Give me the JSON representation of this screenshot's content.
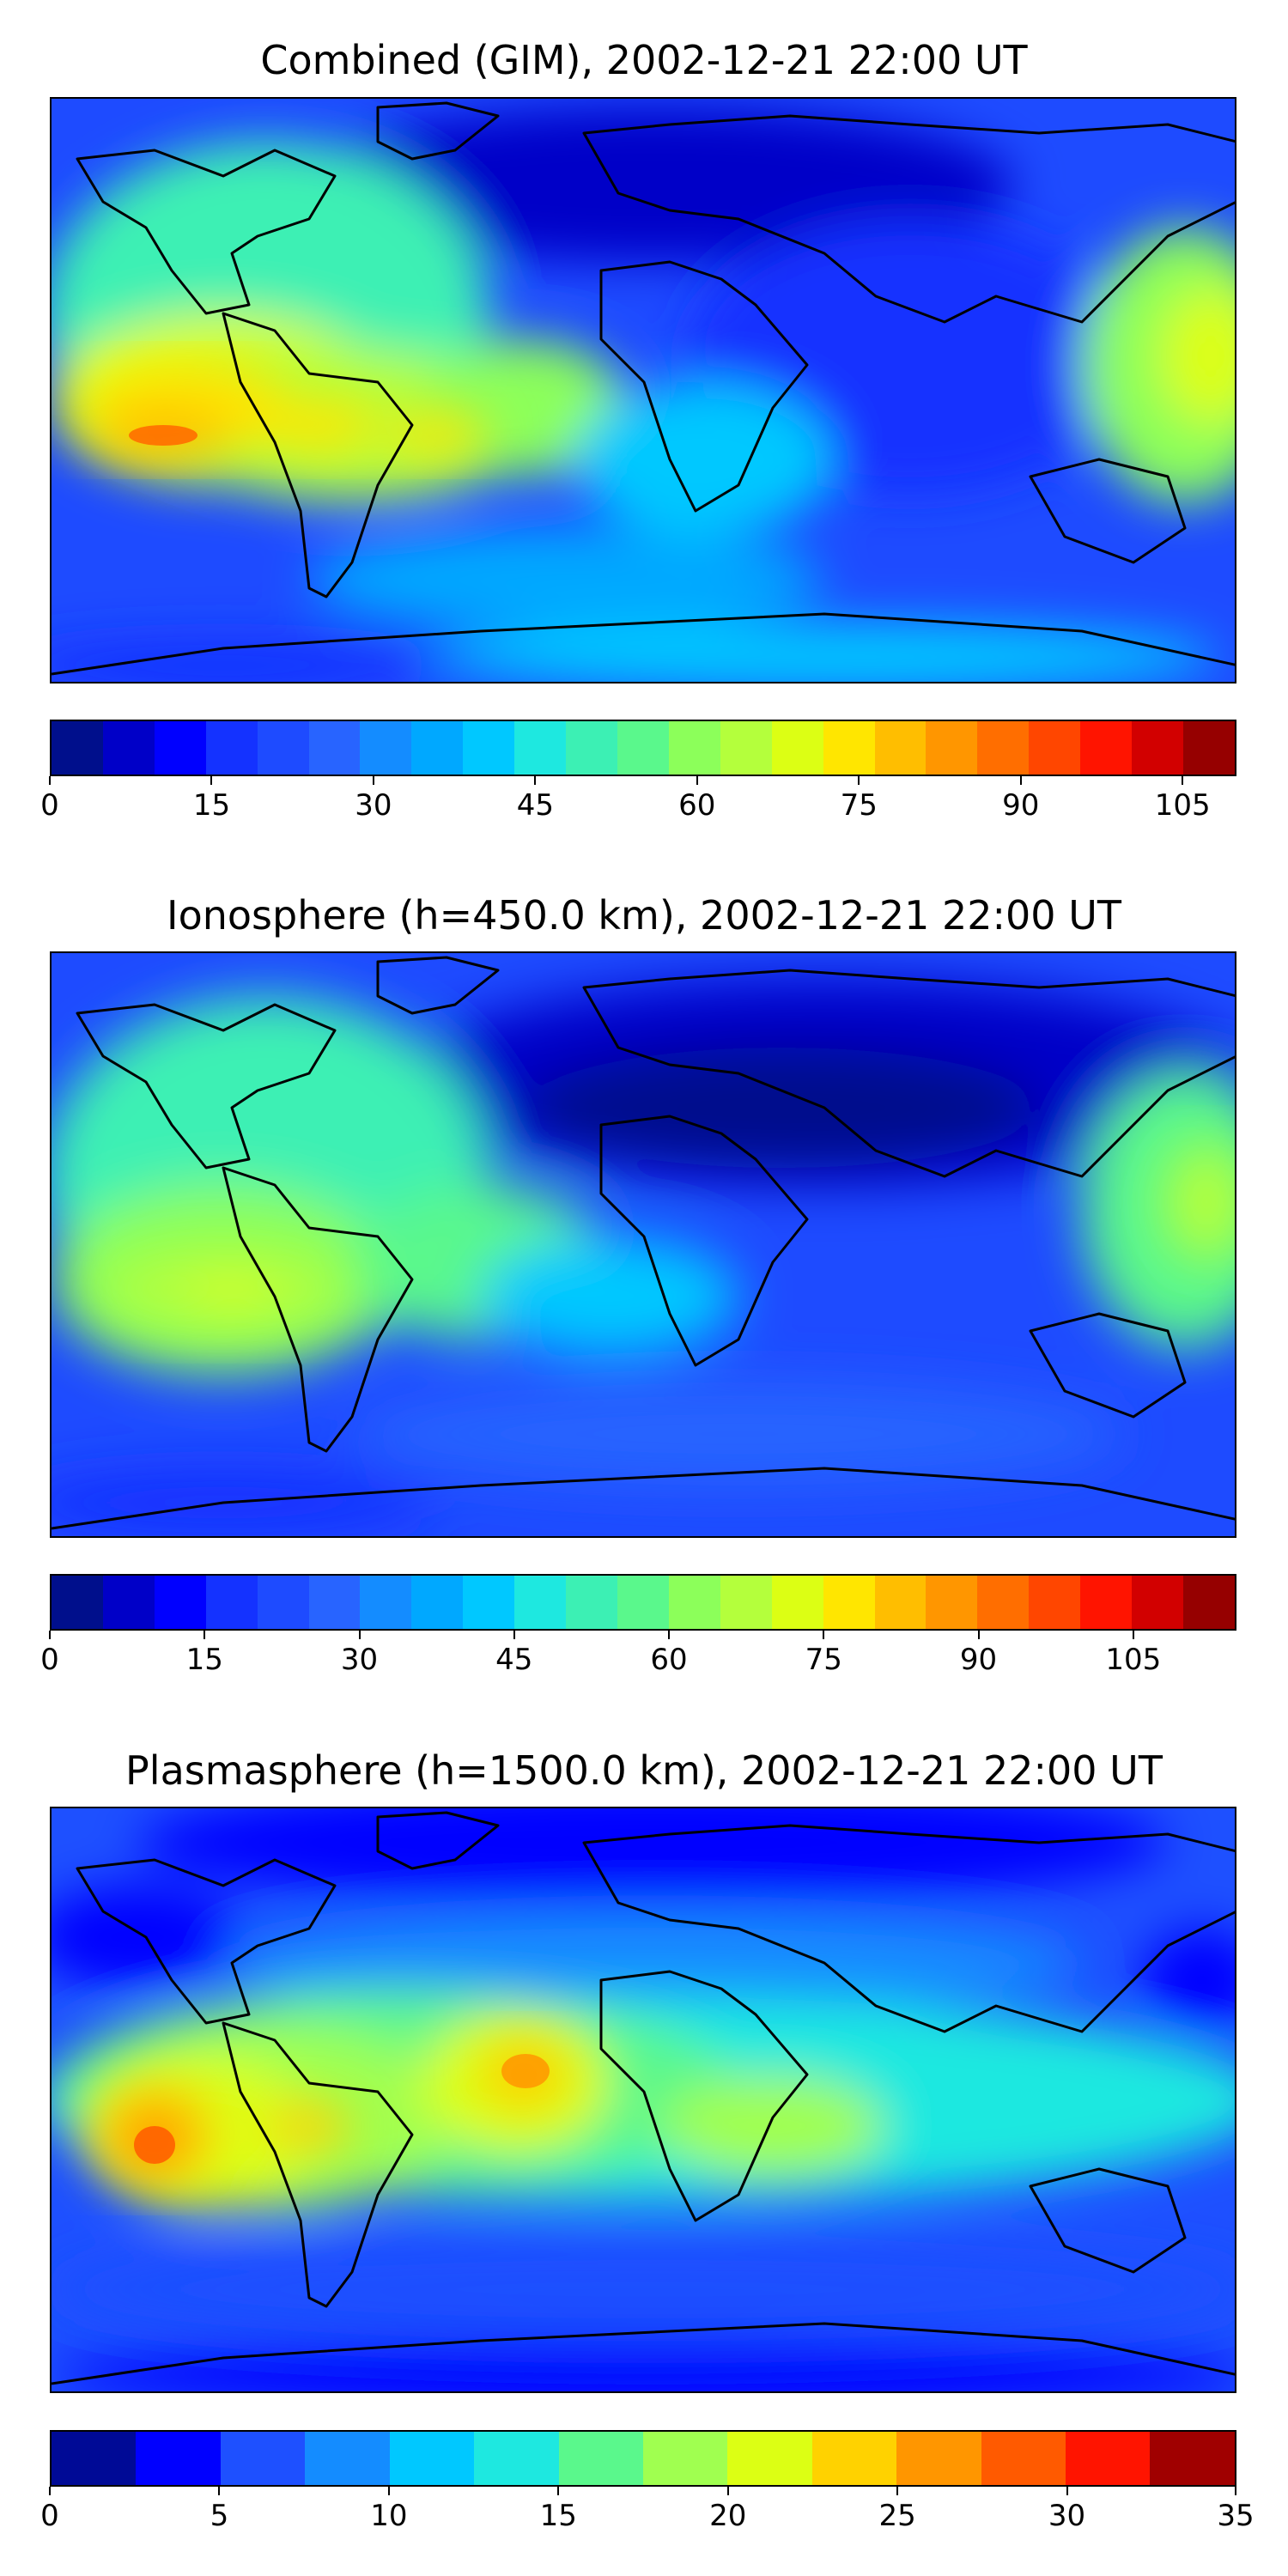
{
  "panels": [
    {
      "title": "Combined (GIM), 2002-12-21 22:00 UT",
      "vmax": 110,
      "ticks": [
        "0",
        "15",
        "30",
        "45",
        "60",
        "75",
        "90",
        "105"
      ],
      "tick_values": [
        0,
        15,
        30,
        45,
        60,
        75,
        90,
        105
      ],
      "colors": [
        "#000f8c",
        "#0000c8",
        "#0000ff",
        "#1432ff",
        "#1e4bff",
        "#2864ff",
        "#148cff",
        "#00a8ff",
        "#00c8ff",
        "#1ee8e0",
        "#3cf0b4",
        "#5af88c",
        "#8cff5a",
        "#b4ff3c",
        "#dcff14",
        "#ffe600",
        "#ffbe00",
        "#ff9600",
        "#ff6e00",
        "#ff4600",
        "#ff1400",
        "#d20000",
        "#960000"
      ]
    },
    {
      "title": "Ionosphere  (h=450.0 km), 2002-12-21 22:00 UT",
      "vmax": 115,
      "ticks": [
        "0",
        "15",
        "30",
        "45",
        "60",
        "75",
        "90",
        "105"
      ],
      "tick_values": [
        0,
        15,
        30,
        45,
        60,
        75,
        90,
        105
      ],
      "colors": [
        "#000f8c",
        "#0000c8",
        "#0000ff",
        "#1432ff",
        "#1e4bff",
        "#2864ff",
        "#148cff",
        "#00a8ff",
        "#00c8ff",
        "#1ee8e0",
        "#3cf0b4",
        "#5af88c",
        "#8cff5a",
        "#b4ff3c",
        "#dcff14",
        "#ffe600",
        "#ffbe00",
        "#ff9600",
        "#ff6e00",
        "#ff4600",
        "#ff1400",
        "#d20000",
        "#960000"
      ]
    },
    {
      "title": "Plasmasphere (h=1500.0 km), 2002-12-21 22:00 UT",
      "vmax": 35,
      "ticks": [
        "0",
        "5",
        "10",
        "15",
        "20",
        "25",
        "30",
        "35"
      ],
      "tick_values": [
        0,
        5,
        10,
        15,
        20,
        25,
        30,
        35
      ],
      "colors": [
        "#000a96",
        "#0000ff",
        "#1e50ff",
        "#148cff",
        "#00c8ff",
        "#1ee8e0",
        "#5af88c",
        "#a0ff50",
        "#dcff14",
        "#ffd200",
        "#ff9600",
        "#ff5a00",
        "#ff1400",
        "#a00000"
      ]
    }
  ]
}
